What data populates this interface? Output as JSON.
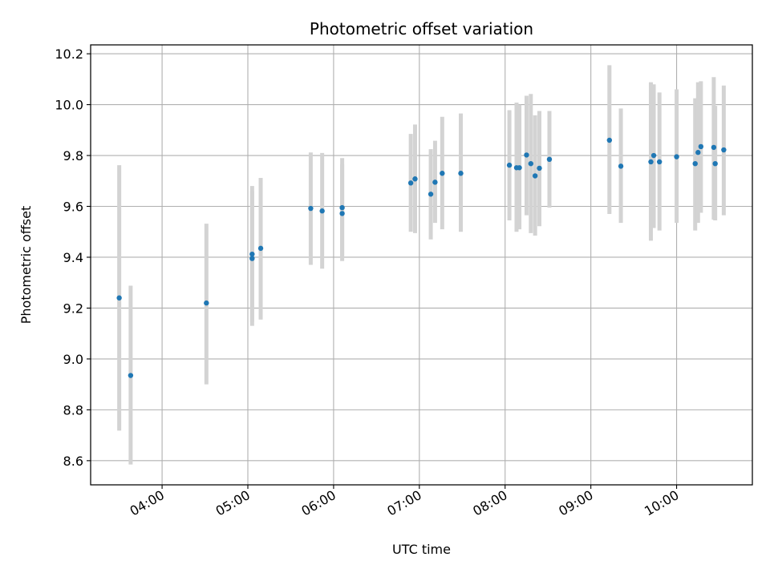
{
  "chart_data": {
    "type": "scatter",
    "title": "Photometric offset variation",
    "xlabel": "UTC time",
    "ylabel": "Photometric offset",
    "xlim": [
      "03:10",
      "10:53"
    ],
    "ylim": [
      8.505,
      10.235
    ],
    "x_ticks": [
      "04:00",
      "05:00",
      "06:00",
      "07:00",
      "08:00",
      "09:00",
      "10:00"
    ],
    "y_ticks": [
      "8.6",
      "8.8",
      "9.0",
      "9.2",
      "9.4",
      "9.6",
      "9.8",
      "10.0",
      "10.2"
    ],
    "grid": true,
    "colors": {
      "point": "#1f77b4",
      "errorbar": "#d3d3d3",
      "grid": "#b0b0b0"
    },
    "points": [
      {
        "x": "03:30",
        "y": 9.24,
        "low": 8.718,
        "high": 9.762
      },
      {
        "x": "03:38",
        "y": 8.935,
        "low": 8.585,
        "high": 9.288
      },
      {
        "x": "04:31",
        "y": 9.22,
        "low": 8.9,
        "high": 9.532
      },
      {
        "x": "05:03",
        "y": 9.395,
        "low": 9.145,
        "high": 9.66
      },
      {
        "x": "05:03",
        "y": 9.412,
        "low": 9.13,
        "high": 9.68
      },
      {
        "x": "05:09",
        "y": 9.435,
        "low": 9.155,
        "high": 9.712
      },
      {
        "x": "05:44",
        "y": 9.592,
        "low": 9.37,
        "high": 9.812
      },
      {
        "x": "05:52",
        "y": 9.582,
        "low": 9.355,
        "high": 9.81
      },
      {
        "x": "06:06",
        "y": 9.572,
        "low": 9.385,
        "high": 9.765
      },
      {
        "x": "06:06",
        "y": 9.595,
        "low": 9.4,
        "high": 9.79
      },
      {
        "x": "06:54",
        "y": 9.692,
        "low": 9.5,
        "high": 9.885
      },
      {
        "x": "06:57",
        "y": 9.708,
        "low": 9.495,
        "high": 9.922
      },
      {
        "x": "07:08",
        "y": 9.648,
        "low": 9.47,
        "high": 9.825
      },
      {
        "x": "07:11",
        "y": 9.695,
        "low": 9.535,
        "high": 9.858
      },
      {
        "x": "07:16",
        "y": 9.73,
        "low": 9.51,
        "high": 9.952
      },
      {
        "x": "07:29",
        "y": 9.73,
        "low": 9.5,
        "high": 9.965
      },
      {
        "x": "08:03",
        "y": 9.762,
        "low": 9.545,
        "high": 9.978
      },
      {
        "x": "08:08",
        "y": 9.752,
        "low": 9.5,
        "high": 10.008
      },
      {
        "x": "08:10",
        "y": 9.752,
        "low": 9.51,
        "high": 10.0
      },
      {
        "x": "08:15",
        "y": 9.802,
        "low": 9.565,
        "high": 10.035
      },
      {
        "x": "08:18",
        "y": 9.768,
        "low": 9.495,
        "high": 10.042
      },
      {
        "x": "08:21",
        "y": 9.72,
        "low": 9.485,
        "high": 9.958
      },
      {
        "x": "08:24",
        "y": 9.75,
        "low": 9.522,
        "high": 9.975
      },
      {
        "x": "08:31",
        "y": 9.785,
        "low": 9.595,
        "high": 9.975
      },
      {
        "x": "09:13",
        "y": 9.86,
        "low": 9.57,
        "high": 10.155
      },
      {
        "x": "09:21",
        "y": 9.758,
        "low": 9.535,
        "high": 9.985
      },
      {
        "x": "09:42",
        "y": 9.775,
        "low": 9.465,
        "high": 10.088
      },
      {
        "x": "09:44",
        "y": 9.8,
        "low": 9.515,
        "high": 10.08
      },
      {
        "x": "09:48",
        "y": 9.775,
        "low": 9.505,
        "high": 10.048
      },
      {
        "x": "10:00",
        "y": 9.795,
        "low": 9.535,
        "high": 10.06
      },
      {
        "x": "10:13",
        "y": 9.768,
        "low": 9.505,
        "high": 10.025
      },
      {
        "x": "10:15",
        "y": 9.812,
        "low": 9.535,
        "high": 10.088
      },
      {
        "x": "10:17",
        "y": 9.835,
        "low": 9.575,
        "high": 10.092
      },
      {
        "x": "10:26",
        "y": 9.832,
        "low": 9.548,
        "high": 10.108
      },
      {
        "x": "10:27",
        "y": 9.768,
        "low": 9.545,
        "high": 9.995
      },
      {
        "x": "10:33",
        "y": 9.822,
        "low": 9.565,
        "high": 10.075
      }
    ]
  }
}
